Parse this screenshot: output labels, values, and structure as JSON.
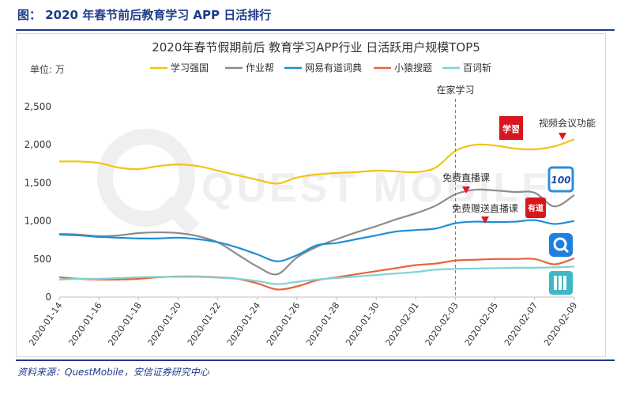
{
  "figure_title": "图： 2020 年春节前后教育学习 APP 日活排行",
  "source_note": "资料来源：QuestMobile，安信证券研究中心",
  "watermark": "QUEST MOBILE",
  "chart_data": {
    "type": "line",
    "title": "2020年春节假期前后 教育学习APP行业 日活跃用户规模TOP5",
    "unit_label": "单位: 万",
    "ylim": [
      0,
      2500
    ],
    "yticks": [
      "0",
      "500",
      "1,000",
      "1,500",
      "2,000",
      "2,500"
    ],
    "ytick_values": [
      0,
      500,
      1000,
      1500,
      2000,
      2500
    ],
    "x": [
      "2020-01-14",
      "2020-01-15",
      "2020-01-16",
      "2020-01-17",
      "2020-01-18",
      "2020-01-19",
      "2020-01-20",
      "2020-01-21",
      "2020-01-22",
      "2020-01-23",
      "2020-01-24",
      "2020-01-25",
      "2020-01-26",
      "2020-01-27",
      "2020-01-28",
      "2020-01-29",
      "2020-01-30",
      "2020-01-31",
      "2020-02-01",
      "2020-02-02",
      "2020-02-03",
      "2020-02-04",
      "2020-02-05",
      "2020-02-06",
      "2020-02-07",
      "2020-02-08",
      "2020-02-09"
    ],
    "xtick_labels": [
      "2020-01-14",
      "2020-01-16",
      "2020-01-18",
      "2020-01-20",
      "2020-01-22",
      "2020-01-24",
      "2020-01-26",
      "2020-01-28",
      "2020-01-30",
      "2020-02-01",
      "2020-02-03",
      "2020-02-05",
      "2020-02-07",
      "2020-02-09"
    ],
    "legend_position": "top",
    "grid": false,
    "series": [
      {
        "name": "学习强国",
        "color": "#f2c40f",
        "values": [
          1780,
          1780,
          1760,
          1700,
          1680,
          1720,
          1740,
          1720,
          1660,
          1600,
          1540,
          1490,
          1570,
          1610,
          1630,
          1640,
          1660,
          1650,
          1640,
          1700,
          1920,
          2000,
          1990,
          1950,
          1940,
          1980,
          2070
        ]
      },
      {
        "name": "作业帮",
        "color": "#8c8c8c",
        "values": [
          830,
          820,
          800,
          810,
          840,
          850,
          840,
          800,
          720,
          560,
          400,
          300,
          520,
          660,
          760,
          850,
          930,
          1020,
          1100,
          1200,
          1350,
          1410,
          1400,
          1380,
          1370,
          1190,
          1340
        ]
      },
      {
        "name": "网易有道词典",
        "color": "#1f8dd6",
        "values": [
          820,
          810,
          790,
          780,
          770,
          770,
          780,
          760,
          720,
          650,
          560,
          470,
          550,
          680,
          710,
          760,
          810,
          860,
          880,
          900,
          970,
          990,
          985,
          990,
          1010,
          960,
          1000
        ]
      },
      {
        "name": "小猿搜题",
        "color": "#e8643a",
        "values": [
          260,
          240,
          230,
          230,
          240,
          260,
          270,
          270,
          260,
          240,
          180,
          100,
          140,
          220,
          260,
          300,
          340,
          380,
          420,
          440,
          480,
          490,
          500,
          500,
          500,
          430,
          510
        ]
      },
      {
        "name": "百词斩",
        "color": "#7fd3d3",
        "values": [
          230,
          240,
          240,
          250,
          260,
          265,
          265,
          265,
          255,
          240,
          210,
          170,
          200,
          230,
          250,
          270,
          290,
          310,
          330,
          360,
          370,
          375,
          380,
          385,
          385,
          390,
          400
        ]
      }
    ],
    "annotations": [
      {
        "text": "在家学习",
        "x": "2020-02-03"
      },
      {
        "text": "免费直播课",
        "x": "2020-02-04"
      },
      {
        "text": "免费赠送直播课",
        "x": "2020-02-05"
      },
      {
        "text": "视频会议功能",
        "x": "2020-02-08"
      }
    ],
    "app_icons": [
      {
        "name": "xuexi-qiangguo-logo",
        "text": "学習",
        "color": "#d8161e"
      },
      {
        "name": "zuoyebang-logo",
        "text": "100",
        "color": "#2b8fd8"
      },
      {
        "name": "youdao-logo",
        "text": "有道",
        "color": "#d8161e"
      },
      {
        "name": "xiaoyuan-logo",
        "text": "",
        "color": "#1e7fe0"
      },
      {
        "name": "baicizhan-logo",
        "text": "",
        "color": "#3fb8c6"
      }
    ]
  }
}
